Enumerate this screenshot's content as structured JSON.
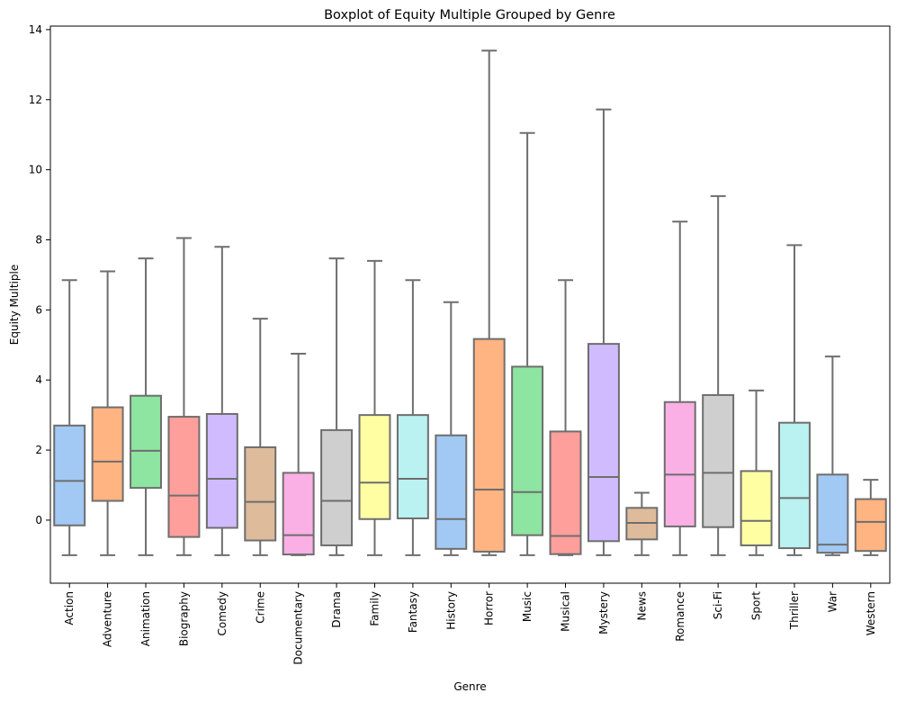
{
  "chart_data": {
    "type": "boxplot",
    "title": "Boxplot of Equity Multiple Grouped by Genre",
    "xlabel": "Genre",
    "ylabel": "Equity Multiple",
    "ylim": [
      -1.8,
      14.1
    ],
    "yticks": [
      0,
      2,
      4,
      6,
      8,
      10,
      12,
      14
    ],
    "grid": false,
    "legend": "none",
    "categories": [
      "Action",
      "Adventure",
      "Animation",
      "Biography",
      "Comedy",
      "Crime",
      "Documentary",
      "Drama",
      "Family",
      "Fantasy",
      "History",
      "Horror",
      "Music",
      "Musical",
      "Mystery",
      "News",
      "Romance",
      "Sci-Fi",
      "Sport",
      "Thriller",
      "War",
      "Western"
    ],
    "boxes": [
      {
        "min": -1.0,
        "q1": -0.15,
        "median": 1.12,
        "q3": 2.7,
        "max": 6.85
      },
      {
        "min": -1.0,
        "q1": 0.55,
        "median": 1.67,
        "q3": 3.22,
        "max": 7.1
      },
      {
        "min": -1.0,
        "q1": 0.92,
        "median": 1.98,
        "q3": 3.55,
        "max": 7.47
      },
      {
        "min": -1.0,
        "q1": -0.48,
        "median": 0.7,
        "q3": 2.95,
        "max": 8.05
      },
      {
        "min": -1.0,
        "q1": -0.22,
        "median": 1.18,
        "q3": 3.03,
        "max": 7.8
      },
      {
        "min": -1.0,
        "q1": -0.58,
        "median": 0.52,
        "q3": 2.08,
        "max": 5.75
      },
      {
        "min": -1.0,
        "q1": -0.98,
        "median": -0.43,
        "q3": 1.35,
        "max": 4.75
      },
      {
        "min": -1.0,
        "q1": -0.72,
        "median": 0.55,
        "q3": 2.57,
        "max": 7.47
      },
      {
        "min": -1.0,
        "q1": 0.03,
        "median": 1.07,
        "q3": 3.0,
        "max": 7.4
      },
      {
        "min": -1.0,
        "q1": 0.05,
        "median": 1.18,
        "q3": 3.0,
        "max": 6.85
      },
      {
        "min": -1.0,
        "q1": -0.82,
        "median": 0.03,
        "q3": 2.42,
        "max": 6.22
      },
      {
        "min": -1.0,
        "q1": -0.9,
        "median": 0.87,
        "q3": 5.17,
        "max": 13.4
      },
      {
        "min": -1.0,
        "q1": -0.43,
        "median": 0.8,
        "q3": 4.38,
        "max": 11.05
      },
      {
        "min": -1.0,
        "q1": -0.97,
        "median": -0.45,
        "q3": 2.53,
        "max": 6.85
      },
      {
        "min": -1.0,
        "q1": -0.6,
        "median": 1.23,
        "q3": 5.03,
        "max": 11.72
      },
      {
        "min": -1.0,
        "q1": -0.55,
        "median": -0.08,
        "q3": 0.35,
        "max": 0.78
      },
      {
        "min": -1.0,
        "q1": -0.18,
        "median": 1.3,
        "q3": 3.37,
        "max": 8.52
      },
      {
        "min": -1.0,
        "q1": -0.2,
        "median": 1.35,
        "q3": 3.57,
        "max": 9.25
      },
      {
        "min": -1.0,
        "q1": -0.72,
        "median": -0.02,
        "q3": 1.4,
        "max": 3.7
      },
      {
        "min": -1.0,
        "q1": -0.8,
        "median": 0.63,
        "q3": 2.78,
        "max": 7.85
      },
      {
        "min": -1.0,
        "q1": -0.93,
        "median": -0.7,
        "q3": 1.3,
        "max": 4.67
      },
      {
        "min": -1.0,
        "q1": -0.88,
        "median": -0.05,
        "q3": 0.6,
        "max": 1.15
      }
    ],
    "colors": [
      "#a1c9f4",
      "#ffb482",
      "#8de5a1",
      "#ff9f9b",
      "#d0bbff",
      "#debb9b",
      "#fab0e4",
      "#cfcfcf",
      "#fffea3",
      "#b9f2f0"
    ],
    "line_color": "#6e6e6e"
  }
}
